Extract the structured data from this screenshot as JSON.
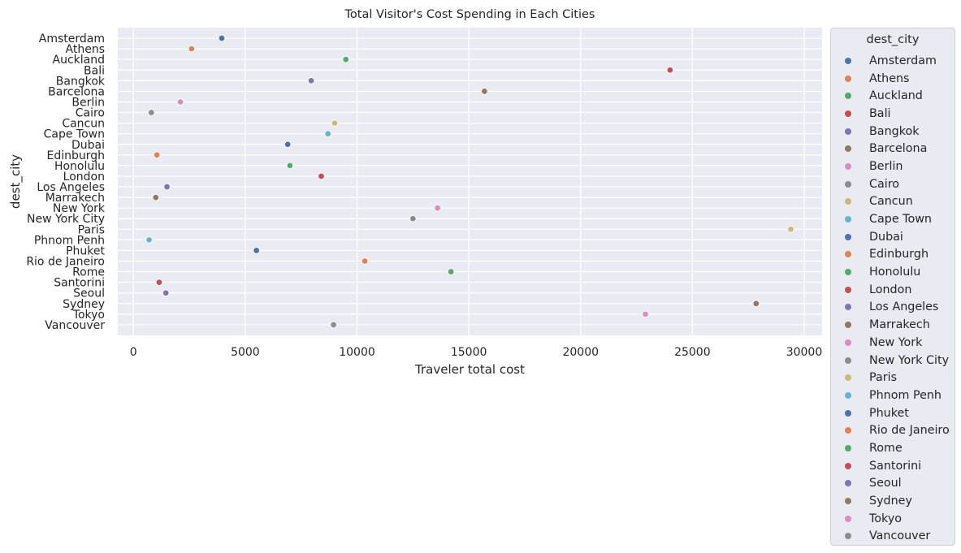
{
  "chart_data": {
    "type": "scatter",
    "title": "Total Visitor's Cost Spending in Each Cities",
    "xlabel": "Traveler total cost",
    "ylabel": "dest_city",
    "xlim": [
      -700,
      30800
    ],
    "xticks": [
      0,
      5000,
      10000,
      15000,
      20000,
      25000,
      30000
    ],
    "grid": true,
    "legend": {
      "title": "dest_city",
      "placement": "outside-right"
    },
    "palette": [
      "#4c72b0",
      "#dd8452",
      "#55a868",
      "#c44e52",
      "#8172b3",
      "#937860",
      "#da8bc3",
      "#8c8c8c",
      "#ccb974",
      "#64b5cd"
    ],
    "categories": [
      "Amsterdam",
      "Athens",
      "Auckland",
      "Bali",
      "Bangkok",
      "Barcelona",
      "Berlin",
      "Cairo",
      "Cancun",
      "Cape Town",
      "Dubai",
      "Edinburgh",
      "Honolulu",
      "London",
      "Los Angeles",
      "Marrakech",
      "New York",
      "New York City",
      "Paris",
      "Phnom Penh",
      "Phuket",
      "Rio de Janeiro",
      "Rome",
      "Santorini",
      "Seoul",
      "Sydney",
      "Tokyo",
      "Vancouver"
    ],
    "values": [
      3950,
      2600,
      9500,
      24000,
      7950,
      15700,
      2100,
      800,
      9000,
      8700,
      6900,
      1050,
      7000,
      8400,
      1500,
      1000,
      13600,
      12500,
      29400,
      700,
      5500,
      10350,
      14200,
      1150,
      1450,
      27850,
      22900,
      8950
    ]
  }
}
